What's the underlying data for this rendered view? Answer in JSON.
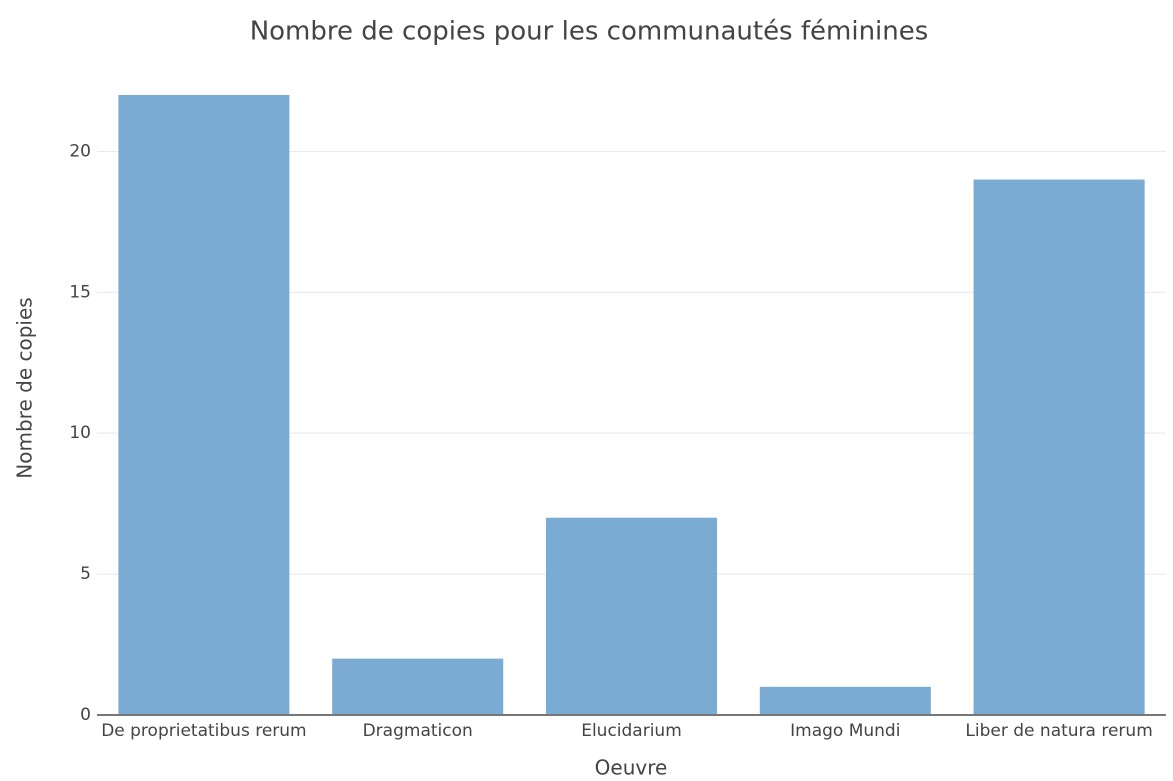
{
  "chart_data": {
    "type": "bar",
    "title": "Nombre de copies pour les communautés féminines",
    "x_label": "Oeuvre",
    "y_label": "Nombre de copies",
    "categories": [
      "De proprietatibus rerum",
      "Dragmaticon",
      "Elucidarium",
      "Imago Mundi",
      "Liber de natura rerum"
    ],
    "values": [
      22,
      2,
      7,
      1,
      19
    ],
    "color": "#7aabd2",
    "ylim": [
      0,
      22
    ],
    "yticks": [
      0,
      5,
      10,
      15,
      20
    ],
    "grid": true
  }
}
